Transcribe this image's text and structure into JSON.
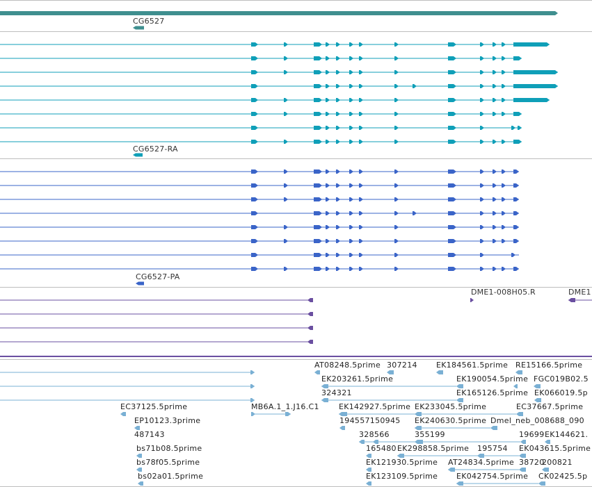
{
  "tracks": {
    "gene": {
      "label": "CG6527",
      "color": "#3f8f8f"
    },
    "transcripts": {
      "label": "CG6527-RA",
      "color": "#0f9fb8"
    },
    "proteins": {
      "label": "CG6527-PA",
      "color": "#3a64c8"
    },
    "clones": {
      "color": "#6a4fa0",
      "labels": [
        "DME1-008H05.R",
        "DME1"
      ]
    },
    "ests": {
      "color": "#7ab0d4",
      "labels": [
        "AT08248.5prime",
        "307214",
        "EK184561.5prime",
        "RE15166.5prime",
        "EK203261.5prime",
        "EK190054.5prime",
        "FGC019B02.5",
        "324321",
        "EK165126.5prime",
        "EK066019.5p",
        "EC37125.5prime",
        "MB6A.1_1.J16.C1",
        "EK142927.5prime",
        "EK233045.5prime",
        "EC37667.5prime",
        "EP10123.3prime",
        "194557150945",
        "EK240630.5prime",
        "Dmel_neb_008688_090",
        "487143",
        "328566",
        "355199",
        "19699",
        "EK144621.",
        "bs71b08.5prime",
        "165480",
        "EK298858.5prime",
        "195754",
        "EK043615.5prime",
        "bs78f05.5prime",
        "EK121930.5prime",
        "AT24834.5prime",
        "38720",
        "200821",
        "bs02a01.5prime",
        "EK123109.5prime",
        "EK042754.5prime",
        "CK02425.5p"
      ]
    }
  }
}
